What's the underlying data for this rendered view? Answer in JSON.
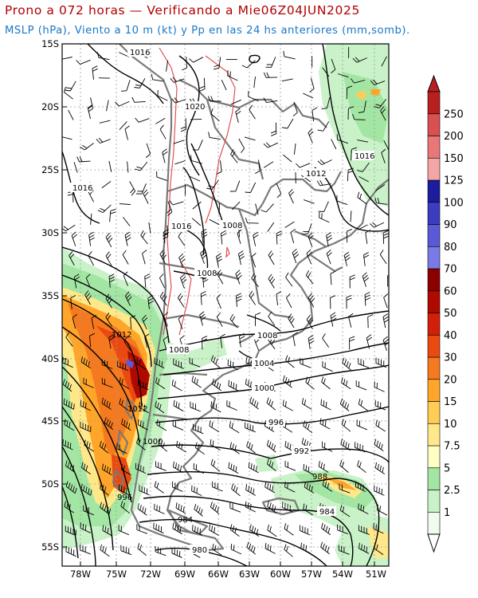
{
  "title": "Prono a 072 horas — Verificando a Mie06Z04JUN2025",
  "subtitle": "MSLP (hPa), Viento a 10 m (kt) y Pp en las 24 hs anteriores (mm,somb).",
  "axes": {
    "lon_ticks": [
      "78W",
      "75W",
      "72W",
      "69W",
      "66W",
      "63W",
      "60W",
      "57W",
      "54W",
      "51W"
    ],
    "lat_ticks": [
      "15S",
      "20S",
      "25S",
      "30S",
      "35S",
      "40S",
      "45S",
      "50S",
      "55S"
    ]
  },
  "isobar_labels": [
    "1016",
    "1020",
    "1016",
    "1016",
    "1012",
    "1008",
    "1016",
    "1008",
    "1012",
    "1008",
    "1008",
    "1004",
    "1000",
    "1012",
    "996",
    "1000",
    "992",
    "988",
    "996",
    "984",
    "984",
    "980"
  ],
  "colorbar": {
    "levels": [
      "1",
      "2.5",
      "5",
      "7.5",
      "10",
      "15",
      "20",
      "30",
      "40",
      "50",
      "60",
      "70",
      "80",
      "90",
      "100",
      "125",
      "150",
      "200",
      "250"
    ],
    "colors": [
      "#f0fcf0",
      "#c9f2c9",
      "#a3e6a3",
      "#ffffc4",
      "#ffe88a",
      "#ffcc55",
      "#ffa62a",
      "#f57a1f",
      "#ea4a12",
      "#d21f0a",
      "#b00a00",
      "#8c0000",
      "#7a7ae6",
      "#5a5ad6",
      "#3c3cc0",
      "#1c1c9e",
      "#f4a6a6",
      "#e87878",
      "#d85050",
      "#b82020"
    ]
  },
  "colors": {
    "title": "#b20000",
    "subtitle": "#1a78c8",
    "isobar": "#000000",
    "terrain_contour": "#e05050",
    "border": "#7a7a7a"
  }
}
